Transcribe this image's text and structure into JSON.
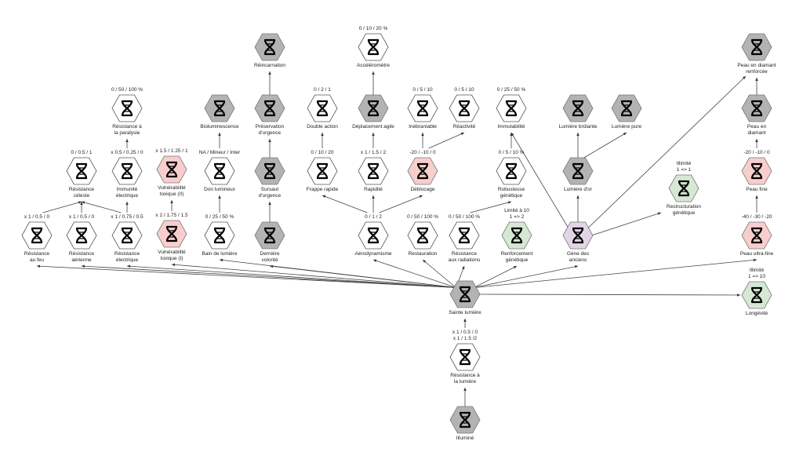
{
  "colors": {
    "gray": "#b3b3b3",
    "white": "#ffffff",
    "red": "#f8cecc",
    "green": "#d5e8d4",
    "purple": "#e1d5e7",
    "stroke": "#777777"
  },
  "nodes": [
    {
      "id": "feu",
      "label": "Résistance\nau feu",
      "value": "x 1 / 0.5 / 0",
      "kind": "white"
    },
    {
      "id": "aerienne",
      "label": "Résistance\naérienne",
      "value": "x 1 / 0.5 / 0",
      "kind": "white"
    },
    {
      "id": "electrique",
      "label": "Résistance\nélectrique",
      "value": "x 1 / 0.75 / 0.5",
      "kind": "white"
    },
    {
      "id": "tox1",
      "label": "Vulnérabilité\ntoxique (I)",
      "value": "x 2 / 1.75 / 1.5",
      "kind": "red"
    },
    {
      "id": "bain",
      "label": "Bain de lumière",
      "value": "0 / 25 / 50 %",
      "kind": "white"
    },
    {
      "id": "derniere",
      "label": "Dernière\nvolonté",
      "value": "",
      "kind": "gray"
    },
    {
      "id": "aero",
      "label": "Aérodynamisme",
      "value": "0 / 1 / 2",
      "kind": "white"
    },
    {
      "id": "restauration",
      "label": "Restauration",
      "value": "0 / 50 / 100 %",
      "kind": "white"
    },
    {
      "id": "radiations",
      "label": "Résistance\naux radiations",
      "value": "0 / 50 / 100 %",
      "kind": "white"
    },
    {
      "id": "renforcement",
      "label": "Renforcement\ngénétique",
      "value": "Limité à 10\n1 => 2",
      "kind": "green"
    },
    {
      "id": "gene",
      "label": "Gène des\nanciens",
      "value": "",
      "kind": "purple"
    },
    {
      "id": "ultrafine",
      "label": "Peau ultra-fine",
      "value": "-40 / -30 / -20",
      "kind": "red"
    },
    {
      "id": "celeste",
      "label": "Résistance\ncéleste",
      "value": "0 / 0.5 / 1",
      "kind": "white"
    },
    {
      "id": "immunite",
      "label": "Immunité\nélectrique",
      "value": "x 0.5 / 0.25 / 0",
      "kind": "white"
    },
    {
      "id": "tox2",
      "label": "Vulnérabilité\ntoxique (II)",
      "value": "x 1.5 / 1.25 / 1",
      "kind": "red"
    },
    {
      "id": "don",
      "label": "Don lumineux",
      "value": "NA / Mineur / Inter",
      "kind": "white"
    },
    {
      "id": "sursaut",
      "label": "Sursaut\nd'urgence",
      "value": "",
      "kind": "gray"
    },
    {
      "id": "frappe",
      "label": "Frappe rapide",
      "value": "0 / 10 / 20",
      "kind": "white"
    },
    {
      "id": "rapidite",
      "label": "Rapidité",
      "value": "x 1 / 1.5 / 2",
      "kind": "white"
    },
    {
      "id": "deblocage",
      "label": "Déblocage",
      "value": "-20 / -10 / 0",
      "kind": "red"
    },
    {
      "id": "robustesse",
      "label": "Robustesse\ngénétique",
      "value": "0 / 5 / 10 %",
      "kind": "white"
    },
    {
      "id": "lumieredor",
      "label": "Lumière d'or",
      "value": "",
      "kind": "gray"
    },
    {
      "id": "restructuration",
      "label": "Restructuration\ngénétique",
      "value": "Illimité\n1 => 1",
      "kind": "green"
    },
    {
      "id": "peaufine",
      "label": "Peau fine",
      "value": "-20 / -10 / 0",
      "kind": "red"
    },
    {
      "id": "paralysie",
      "label": "Résistance à\nla paralysie",
      "value": "0 / 50 / 100 %",
      "kind": "white"
    },
    {
      "id": "biolum",
      "label": "Bioluminescence",
      "value": "",
      "kind": "gray"
    },
    {
      "id": "preservation",
      "label": "Préservation\nd'urgence",
      "value": "",
      "kind": "gray"
    },
    {
      "id": "double",
      "label": "Double action",
      "value": "0 / 2 / 1",
      "kind": "white"
    },
    {
      "id": "deplacement",
      "label": "Déplacement agile",
      "value": "",
      "kind": "gray"
    },
    {
      "id": "inebranlable",
      "label": "Inébranlable",
      "value": "0 / 5 / 10",
      "kind": "white"
    },
    {
      "id": "reactivite",
      "label": "Réactivité",
      "value": "0 / 5 / 10",
      "kind": "white"
    },
    {
      "id": "immutabilite",
      "label": "Immutabilité",
      "value": "0 / 25 / 50 %",
      "kind": "white"
    },
    {
      "id": "brulante",
      "label": "Lumière brûlante",
      "value": "",
      "kind": "gray"
    },
    {
      "id": "pure",
      "label": "Lumière pure",
      "value": "",
      "kind": "gray"
    },
    {
      "id": "diamant",
      "label": "Peau en\ndiamant",
      "value": "",
      "kind": "gray"
    },
    {
      "id": "reincarnation",
      "label": "Réincarnation",
      "value": "",
      "kind": "gray"
    },
    {
      "id": "accelerometre",
      "label": "Accéléromètre",
      "value": "0 / 10 / 20 %",
      "kind": "white"
    },
    {
      "id": "diamantrenf",
      "label": "Peau en diamant\nrenforcée",
      "value": "",
      "kind": "gray"
    },
    {
      "id": "sainte",
      "label": "Sainte lumière",
      "value": "",
      "kind": "gray"
    },
    {
      "id": "longevite",
      "label": "Longévité",
      "value": "Illimité\n1 => 10",
      "kind": "green"
    },
    {
      "id": "reslumiere",
      "label": "Résistance à\nla lumière",
      "value": "x 1 / 0.5 / 0\nx 1 / 1.5 /2",
      "kind": "white"
    },
    {
      "id": "illumine",
      "label": "Illuminé",
      "value": "",
      "kind": "gray"
    }
  ],
  "edges": [
    [
      "feu",
      "celeste"
    ],
    [
      "aerienne",
      "celeste"
    ],
    [
      "electrique",
      "celeste"
    ],
    [
      "electrique",
      "immunite"
    ],
    [
      "immunite",
      "paralysie"
    ],
    [
      "tox1",
      "tox2"
    ],
    [
      "bain",
      "don"
    ],
    [
      "don",
      "biolum"
    ],
    [
      "derniere",
      "sursaut"
    ],
    [
      "sursaut",
      "preservation"
    ],
    [
      "preservation",
      "reincarnation"
    ],
    [
      "aero",
      "frappe"
    ],
    [
      "aero",
      "rapidite"
    ],
    [
      "aero",
      "deblocage"
    ],
    [
      "frappe",
      "double"
    ],
    [
      "rapidite",
      "deplacement"
    ],
    [
      "deplacement",
      "accelerometre"
    ],
    [
      "deblocage",
      "inebranlable"
    ],
    [
      "deblocage",
      "reactivite"
    ],
    [
      "radiations",
      "robustesse"
    ],
    [
      "robustesse",
      "immutabilite"
    ],
    [
      "gene",
      "immutabilite"
    ],
    [
      "gene",
      "lumieredor"
    ],
    [
      "lumieredor",
      "brulante"
    ],
    [
      "lumieredor",
      "pure"
    ],
    [
      "gene",
      "restructuration"
    ],
    [
      "gene",
      "diamantrenf"
    ],
    [
      "ultrafine",
      "peaufine"
    ],
    [
      "peaufine",
      "diamant"
    ],
    [
      "diamant",
      "diamantrenf"
    ],
    [
      "sainte",
      "feu"
    ],
    [
      "sainte",
      "aerienne"
    ],
    [
      "sainte",
      "electrique"
    ],
    [
      "sainte",
      "tox1"
    ],
    [
      "sainte",
      "bain"
    ],
    [
      "sainte",
      "derniere"
    ],
    [
      "sainte",
      "aero"
    ],
    [
      "sainte",
      "restauration"
    ],
    [
      "sainte",
      "radiations"
    ],
    [
      "sainte",
      "renforcement"
    ],
    [
      "sainte",
      "gene"
    ],
    [
      "sainte",
      "ultrafine"
    ],
    [
      "sainte",
      "longevite"
    ],
    [
      "reslumiere",
      "sainte"
    ],
    [
      "illumine",
      "reslumiere"
    ]
  ]
}
